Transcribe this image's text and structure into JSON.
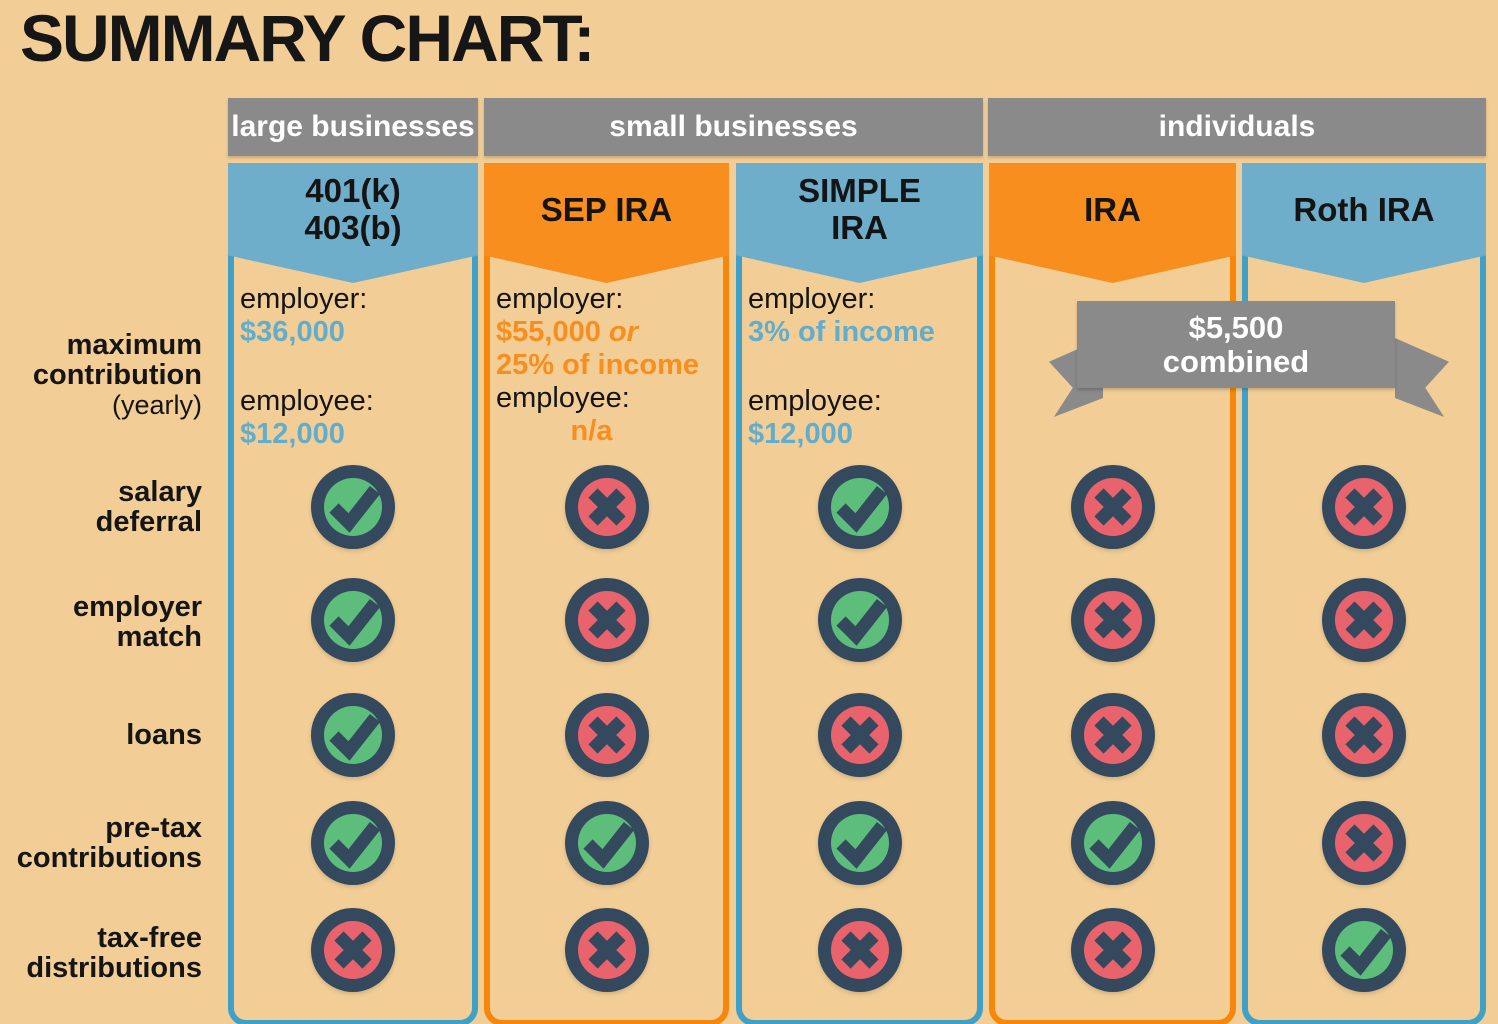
{
  "title": "SUMMARY CHART:",
  "groups": [
    {
      "label": "large businesses"
    },
    {
      "label": "small businesses"
    },
    {
      "label": "individuals"
    }
  ],
  "row_labels": [
    {
      "text": "maximum\ncontribution",
      "note": "(yearly)"
    },
    {
      "text": "salary\ndeferral"
    },
    {
      "text": "employer\nmatch"
    },
    {
      "text": "loans"
    },
    {
      "text": "pre-tax\ncontributions"
    },
    {
      "text": "tax-free\ndistributions"
    }
  ],
  "columns": [
    {
      "title": "401(k)\n403(b)",
      "theme": "blue",
      "group": "large businesses",
      "contribution": {
        "employer_label": "employer:",
        "employer_value": "$36,000",
        "employer_value_suffix": "",
        "employer_value2": "",
        "employee_label": "employee:",
        "employee_value": "$12,000"
      }
    },
    {
      "title": "SEP IRA",
      "theme": "orange",
      "group": "small businesses",
      "contribution": {
        "employer_label": "employer:",
        "employer_value": "$55,000",
        "employer_value_suffix": " or",
        "employer_value2": "25% of income",
        "employee_label": "employee:",
        "employee_value": "n/a"
      }
    },
    {
      "title": "SIMPLE\nIRA",
      "theme": "blue",
      "group": "small businesses",
      "contribution": {
        "employer_label": "employer:",
        "employer_value": "3% of income",
        "employer_value_suffix": "",
        "employer_value2": "",
        "employee_label": "employee:",
        "employee_value": "$12,000"
      }
    },
    {
      "title": "IRA",
      "theme": "orange",
      "group": "individuals",
      "contribution": null
    },
    {
      "title": "Roth IRA",
      "theme": "blue",
      "group": "individuals",
      "contribution": null
    }
  ],
  "combined_banner": {
    "line1": "$5,500",
    "line2": "combined"
  },
  "chart_data": {
    "type": "table",
    "title": "SUMMARY CHART:",
    "column_groups": [
      {
        "label": "large businesses",
        "columns": [
          "401(k) 403(b)"
        ]
      },
      {
        "label": "small businesses",
        "columns": [
          "SEP IRA",
          "SIMPLE IRA"
        ]
      },
      {
        "label": "individuals",
        "columns": [
          "IRA",
          "Roth IRA"
        ]
      }
    ],
    "columns": [
      "401(k) 403(b)",
      "SEP IRA",
      "SIMPLE IRA",
      "IRA",
      "Roth IRA"
    ],
    "max_contribution_yearly": [
      "employer: $36,000; employee: $12,000",
      "employer: $55,000 or 25% of income; employee: n/a",
      "employer: 3% of income; employee: $12,000",
      "$5,500 combined",
      "$5,500 combined"
    ],
    "rows": [
      {
        "label": "salary deferral",
        "values": [
          "yes",
          "no",
          "yes",
          "no",
          "no"
        ]
      },
      {
        "label": "employer match",
        "values": [
          "yes",
          "no",
          "yes",
          "no",
          "no"
        ]
      },
      {
        "label": "loans",
        "values": [
          "yes",
          "no",
          "no",
          "no",
          "no"
        ]
      },
      {
        "label": "pre-tax contributions",
        "values": [
          "yes",
          "yes",
          "yes",
          "yes",
          "no"
        ]
      },
      {
        "label": "tax-free distributions",
        "values": [
          "no",
          "no",
          "no",
          "no",
          "yes"
        ]
      }
    ]
  },
  "colors": {
    "background": "#F2CE96",
    "gray": "#8A8A8A",
    "blue": "#6FAECB",
    "blue_border": "#3FA1C8",
    "blue_text": "#62ACCC",
    "orange": "#F78E1E",
    "orange_border": "#F5870A",
    "navy": "#34495E",
    "green": "#5DBE7C",
    "red": "#E8636C",
    "title_text": "#161616",
    "white": "#FFFFFF"
  }
}
